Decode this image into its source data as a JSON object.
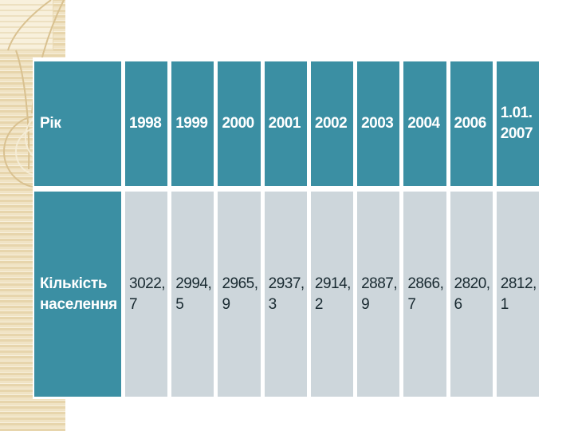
{
  "slide": {
    "background_color": "#ffffff",
    "strip_color": "#f2e6c9",
    "accent_teal": "#3b8fa3",
    "cell_gray": "#cdd6db",
    "text_dark": "#182930",
    "decoration_line_color": "#d9c190"
  },
  "table": {
    "header": {
      "row_label": "Рік",
      "years": [
        "1998",
        "1999",
        "2000",
        "2001",
        "2002",
        "2003",
        "2004",
        "2006",
        "1.01. 2007"
      ]
    },
    "data": {
      "row_label": "Кількість населення",
      "values": [
        "3022, 7",
        "2994, 5",
        "2965, 9",
        "2937, 3",
        "2914, 2",
        "2887, 9",
        "2866, 7",
        "2820, 6",
        "2812, 1"
      ]
    }
  },
  "chart_data": {
    "type": "table",
    "title": "",
    "row_headers": [
      "Рік",
      "Кількість населення"
    ],
    "categories": [
      "1998",
      "1999",
      "2000",
      "2001",
      "2002",
      "2003",
      "2004",
      "2006",
      "1.01.2007"
    ],
    "series": [
      {
        "name": "Кількість населення",
        "values": [
          3022.7,
          2994.5,
          2965.9,
          2937.3,
          2914.2,
          2887.9,
          2866.7,
          2820.6,
          2812.1
        ]
      }
    ],
    "layout_hints": {
      "header_fill": "#3b8fa3",
      "body_fill": "#cdd6db",
      "header_text_color": "#ffffff",
      "grid": "white separators between cells"
    }
  }
}
